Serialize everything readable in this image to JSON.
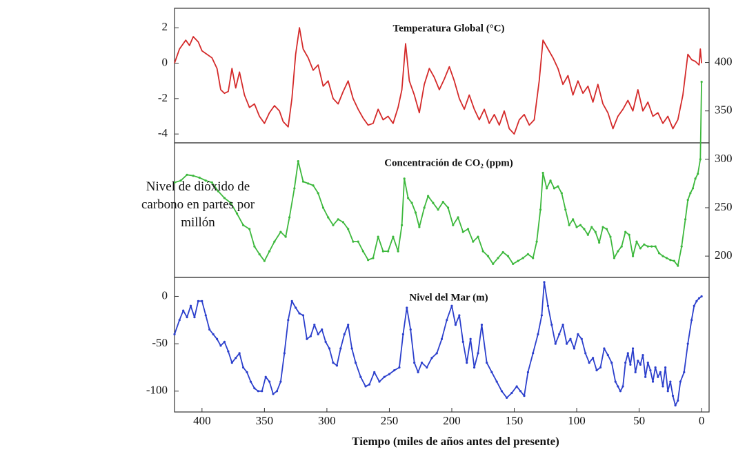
{
  "chart_data": [
    {
      "type": "line",
      "title": "Temperatura Global (°C)",
      "color": "#d42a2a",
      "xlim": [
        422,
        -6
      ],
      "ylim": [
        -4.5,
        3.1
      ],
      "yticks": [
        2,
        0,
        -2,
        -4
      ],
      "x": [
        422,
        418,
        413,
        410,
        407,
        403,
        400,
        396,
        392,
        388,
        385,
        382,
        379,
        376,
        373,
        370,
        366,
        362,
        358,
        354,
        350,
        346,
        342,
        338,
        335,
        331,
        328,
        325,
        322,
        319,
        315,
        311,
        307,
        303,
        299,
        295,
        291,
        287,
        283,
        279,
        275,
        271,
        267,
        263,
        259,
        255,
        251,
        247,
        243,
        240,
        237,
        234,
        230,
        226,
        222,
        218,
        214,
        210,
        206,
        202,
        198,
        194,
        190,
        186,
        182,
        178,
        174,
        170,
        166,
        162,
        158,
        154,
        150,
        146,
        142,
        138,
        134,
        130,
        127,
        123,
        119,
        115,
        111,
        107,
        103,
        99,
        95,
        91,
        87,
        83,
        79,
        75,
        71,
        67,
        63,
        59,
        55,
        51,
        47,
        43,
        39,
        35,
        31,
        27,
        23,
        19,
        15,
        11,
        8,
        5,
        2,
        1,
        0
      ],
      "values": [
        0,
        0.8,
        1.3,
        1.0,
        1.5,
        1.2,
        0.7,
        0.5,
        0.3,
        -0.3,
        -1.5,
        -1.7,
        -1.6,
        -0.3,
        -1.4,
        -0.5,
        -1.8,
        -2.5,
        -2.3,
        -3.0,
        -3.4,
        -2.8,
        -2.4,
        -2.7,
        -3.3,
        -3.6,
        -2.0,
        0.5,
        2.0,
        0.8,
        0.3,
        -0.4,
        -0.1,
        -1.3,
        -1.0,
        -2.0,
        -2.3,
        -1.6,
        -1.0,
        -2.0,
        -2.6,
        -3.1,
        -3.5,
        -3.4,
        -2.6,
        -3.2,
        -3.0,
        -3.4,
        -2.5,
        -1.5,
        1.1,
        -1.0,
        -1.8,
        -2.8,
        -1.2,
        -0.3,
        -0.8,
        -1.5,
        -0.9,
        -0.2,
        -1.0,
        -2.0,
        -2.6,
        -1.8,
        -2.6,
        -3.2,
        -2.6,
        -3.4,
        -2.9,
        -3.5,
        -2.7,
        -3.7,
        -4.0,
        -3.2,
        -2.9,
        -3.5,
        -3.2,
        -1.0,
        1.3,
        0.8,
        0.3,
        -0.3,
        -1.2,
        -0.7,
        -1.8,
        -1.0,
        -1.7,
        -1.3,
        -2.2,
        -1.2,
        -2.3,
        -2.8,
        -3.7,
        -3.0,
        -2.6,
        -2.1,
        -2.7,
        -1.5,
        -2.7,
        -2.2,
        -3.0,
        -2.8,
        -3.4,
        -3.0,
        -3.7,
        -3.2,
        -1.8,
        0.5,
        0.2,
        0.1,
        -0.1,
        0.8,
        0
      ]
    },
    {
      "type": "line",
      "title": "Concentración de CO₂ (ppm)",
      "color": "#3db83d",
      "markers": true,
      "annotation": "Nivel de dióxido de carbono en partes por millón",
      "xlim": [
        422,
        -6
      ],
      "y2lim": [
        178,
        456
      ],
      "y2ticks": [
        400,
        350,
        300,
        250,
        200
      ],
      "x": [
        422,
        417,
        412,
        407,
        402,
        397,
        392,
        387,
        382,
        377,
        372,
        367,
        362,
        358,
        354,
        350,
        346,
        342,
        337,
        333,
        330,
        326,
        323,
        319,
        315,
        311,
        307,
        303,
        299,
        295,
        291,
        287,
        283,
        279,
        275,
        271,
        267,
        263,
        259,
        255,
        251,
        247,
        243,
        240,
        238,
        235,
        232,
        229,
        226,
        222,
        219,
        215,
        211,
        207,
        203,
        199,
        195,
        191,
        187,
        183,
        179,
        175,
        171,
        167,
        163,
        159,
        155,
        151,
        147,
        143,
        139,
        135,
        132,
        129,
        127,
        124,
        121,
        118,
        115,
        112,
        109,
        106,
        103,
        100,
        97,
        94,
        91,
        88,
        85,
        82,
        79,
        76,
        73,
        70,
        67,
        64,
        61,
        58,
        55,
        52,
        49,
        46,
        43,
        40,
        37,
        34,
        31,
        28,
        25,
        22,
        19,
        16,
        13,
        11,
        9,
        7,
        5,
        3,
        1,
        0
      ],
      "values": [
        276,
        278,
        284,
        283,
        281,
        278,
        276,
        267,
        260,
        255,
        244,
        232,
        228,
        210,
        202,
        195,
        205,
        215,
        225,
        220,
        240,
        270,
        298,
        277,
        275,
        273,
        265,
        250,
        240,
        232,
        238,
        235,
        228,
        215,
        215,
        205,
        196,
        198,
        220,
        205,
        205,
        220,
        205,
        232,
        280,
        260,
        255,
        245,
        230,
        250,
        262,
        255,
        248,
        256,
        250,
        232,
        240,
        225,
        228,
        215,
        220,
        205,
        200,
        192,
        198,
        204,
        200,
        192,
        195,
        198,
        202,
        198,
        215,
        248,
        286,
        270,
        278,
        270,
        272,
        265,
        248,
        232,
        238,
        230,
        232,
        228,
        222,
        230,
        225,
        214,
        230,
        228,
        220,
        198,
        205,
        210,
        225,
        222,
        200,
        215,
        208,
        212,
        210,
        210,
        210,
        203,
        200,
        198,
        196,
        195,
        190,
        210,
        238,
        258,
        265,
        270,
        280,
        285,
        300,
        380
      ]
    },
    {
      "type": "line",
      "title": "Nivel del Mar (m)",
      "color": "#2b3fcc",
      "markers": true,
      "xlabel": "Tiempo (miles de años antes del presente)",
      "xlim": [
        422,
        -6
      ],
      "ylim": [
        -122,
        20
      ],
      "yticks": [
        0,
        -50,
        -100
      ],
      "xticks": [
        400,
        350,
        300,
        250,
        200,
        150,
        100,
        50,
        0
      ],
      "x": [
        422,
        418,
        415,
        412,
        409,
        406,
        403,
        400,
        397,
        394,
        391,
        388,
        385,
        382,
        379,
        376,
        373,
        370,
        367,
        364,
        361,
        358,
        355,
        352,
        349,
        346,
        343,
        340,
        337,
        334,
        331,
        328,
        325,
        322,
        319,
        316,
        313,
        310,
        307,
        304,
        301,
        298,
        295,
        292,
        289,
        286,
        283,
        280,
        277,
        273,
        269,
        266,
        262,
        258,
        254,
        250,
        246,
        242,
        239,
        236,
        233,
        230,
        227,
        224,
        220,
        216,
        212,
        208,
        204,
        200,
        197,
        194,
        191,
        188,
        185,
        182,
        179,
        176,
        172,
        168,
        164,
        160,
        156,
        152,
        148,
        145,
        142,
        139,
        135,
        131,
        128,
        126,
        123,
        120,
        117,
        114,
        111,
        108,
        105,
        102,
        99,
        96,
        93,
        90,
        87,
        84,
        81,
        78,
        75,
        72,
        69,
        67,
        65,
        63,
        61,
        59,
        57,
        55,
        53,
        51,
        49,
        47,
        45,
        43,
        41,
        39,
        37,
        35,
        33,
        31,
        29,
        27,
        25,
        23,
        21,
        19,
        17,
        14,
        11,
        8,
        6,
        4,
        2,
        0
      ],
      "values": [
        -40,
        -25,
        -15,
        -22,
        -10,
        -22,
        -5,
        -5,
        -20,
        -35,
        -40,
        -45,
        -52,
        -48,
        -58,
        -70,
        -65,
        -60,
        -75,
        -80,
        -90,
        -97,
        -100,
        -100,
        -85,
        -90,
        -103,
        -100,
        -90,
        -60,
        -25,
        -5,
        -12,
        -18,
        -20,
        -45,
        -42,
        -30,
        -40,
        -35,
        -48,
        -55,
        -70,
        -73,
        -55,
        -40,
        -30,
        -55,
        -70,
        -85,
        -95,
        -93,
        -80,
        -90,
        -85,
        -82,
        -78,
        -75,
        -40,
        -12,
        -35,
        -70,
        -80,
        -70,
        -75,
        -65,
        -60,
        -45,
        -25,
        -10,
        -30,
        -20,
        -48,
        -70,
        -45,
        -75,
        -60,
        -30,
        -70,
        -80,
        -90,
        -100,
        -107,
        -102,
        -95,
        -100,
        -105,
        -80,
        -60,
        -40,
        -20,
        15,
        -10,
        -30,
        -50,
        -40,
        -30,
        -50,
        -45,
        -55,
        -40,
        -45,
        -60,
        -70,
        -65,
        -78,
        -75,
        -55,
        -62,
        -70,
        -90,
        -95,
        -100,
        -95,
        -70,
        -60,
        -72,
        -55,
        -80,
        -68,
        -72,
        -62,
        -85,
        -70,
        -78,
        -90,
        -75,
        -85,
        -80,
        -95,
        -75,
        -100,
        -90,
        -105,
        -115,
        -110,
        -90,
        -80,
        -50,
        -25,
        -10,
        -5,
        -2,
        0
      ]
    }
  ]
}
